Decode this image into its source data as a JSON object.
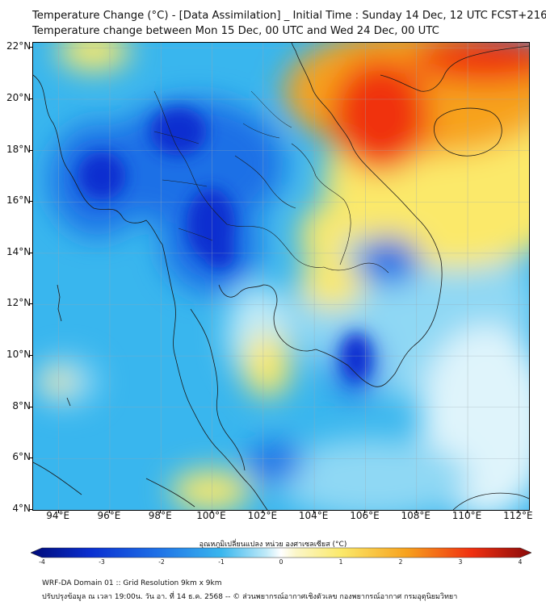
{
  "header": {
    "title_line1": "Temperature Change (°C) - [Data Assimilation] _ Initial Time : Sunday 14 Dec, 12 UTC FCST+216",
    "title_line2": "Temperature change between Mon 15 Dec, 00 UTC and Wed 24 Dec, 00 UTC"
  },
  "map": {
    "lat_ticks": [
      "22°N",
      "20°N",
      "18°N",
      "16°N",
      "14°N",
      "12°N",
      "10°N",
      "8°N",
      "6°N",
      "4°N"
    ],
    "lon_ticks": [
      "94°E",
      "96°E",
      "98°E",
      "100°E",
      "102°E",
      "104°E",
      "106°E",
      "108°E",
      "110°E",
      "112°E"
    ],
    "lat_range": [
      4,
      22.2
    ],
    "lon_range": [
      93,
      112.4
    ],
    "colors": {
      "strong_cold": "#0a2fd0",
      "cold": "#1e6fe6",
      "cool": "#39b6ee",
      "light": "#8fd8f4",
      "neutral": "#f4fbff",
      "warm": "#fbe96a",
      "hot": "#f7a21e",
      "very_hot": "#f03010"
    }
  },
  "colorbar": {
    "title": "อุณหภูมิเปลี่ยนแปลง หน่วย องศาเซลเซียส (°C)",
    "ticks": [
      "-4",
      "-3",
      "-2",
      "-1",
      "0",
      "1",
      "2",
      "3",
      "4"
    ],
    "range": [
      -4,
      4
    ]
  },
  "footer": {
    "line1": "WRF-DA Domain 01 :: Grid Resolution 9km x 9km",
    "line2": "ปรับปรุงข้อมูล ณ เวลา 19:00น. วัน อา. ที่ 14 ธ.ค. 2568 -- © ส่วนพยากรณ์อากาศเชิงตัวเลข กองพยากรณ์อากาศ กรมอุตุนิยมวิทยา"
  }
}
